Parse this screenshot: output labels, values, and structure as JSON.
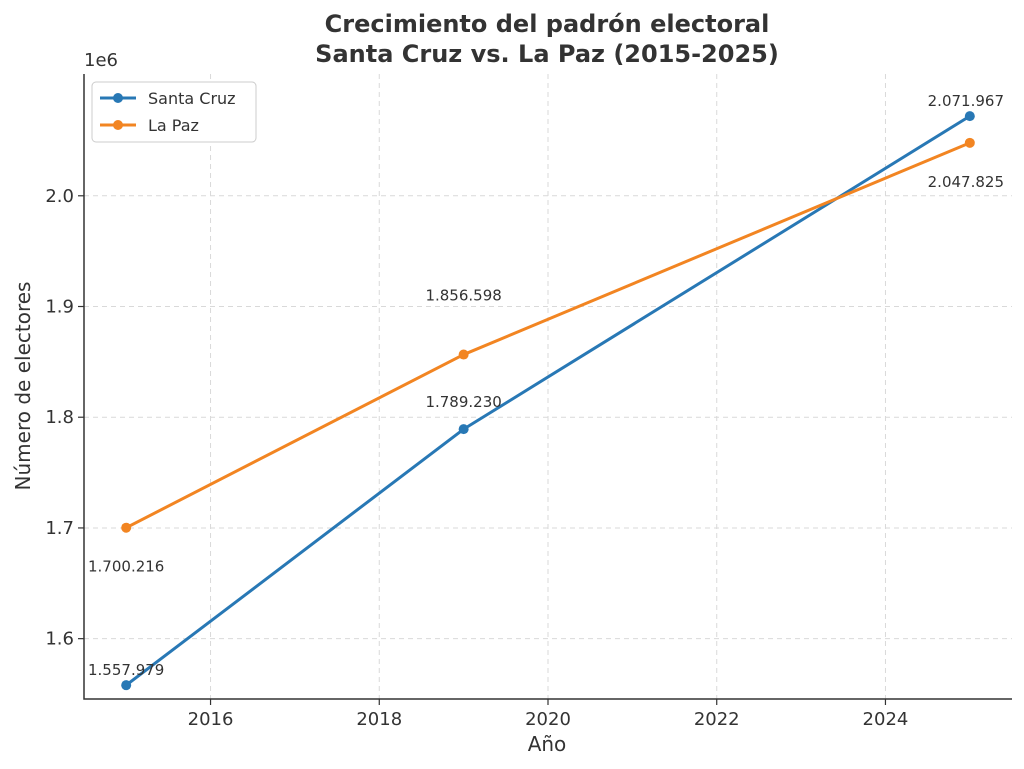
{
  "chart_data": {
    "type": "line",
    "title_line1": "Crecimiento del padrón electoral",
    "title_line2": "Santa Cruz vs. La Paz (2015-2025)",
    "xlabel": "Año",
    "ylabel": "Número de electores",
    "y_offset_label": "1e6",
    "xlim": [
      2014.5,
      2025.5
    ],
    "ylim": [
      1.5455,
      2.11
    ],
    "x_scale_label": "years",
    "x_ticks": [
      2016,
      2018,
      2020,
      2022,
      2024
    ],
    "x_tick_labels": [
      "2016",
      "2018",
      "2020",
      "2022",
      "2024"
    ],
    "y_ticks": [
      1.6,
      1.7,
      1.8,
      1.9,
      2.0
    ],
    "y_tick_labels": [
      "1.6",
      "1.7",
      "1.8",
      "1.9",
      "2.0"
    ],
    "grid": true,
    "legend_position": "top-left",
    "series": [
      {
        "name": "Santa Cruz",
        "color": "#2878b5",
        "x": [
          2015,
          2019,
          2025
        ],
        "y": [
          1557979,
          1789230,
          2071967
        ],
        "labels": [
          "1.557.979",
          "1.789.230",
          "2.071.967"
        ]
      },
      {
        "name": "La Paz",
        "color": "#f28522",
        "x": [
          2015,
          2019,
          2025
        ],
        "y": [
          1700216,
          1856598,
          2047825
        ],
        "labels": [
          "1.700.216",
          "1.856.598",
          "2.047.825"
        ]
      }
    ]
  }
}
